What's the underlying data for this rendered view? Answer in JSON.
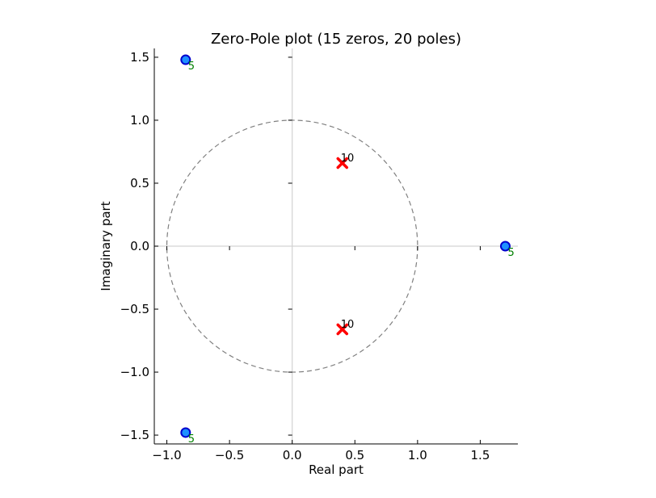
{
  "chart_data": {
    "type": "scatter",
    "title": "Zero-Pole plot (15 zeros, 20 poles)",
    "xlabel": "Real part",
    "ylabel": "Imaginary part",
    "xlim": [
      -1.1,
      1.8
    ],
    "ylim": [
      -1.57,
      1.57
    ],
    "x_ticks": [
      -1.0,
      -0.5,
      0.0,
      0.5,
      1.0,
      1.5
    ],
    "x_tick_labels": [
      "−1.0",
      "−0.5",
      "0.0",
      "0.5",
      "1.0",
      "1.5"
    ],
    "y_ticks": [
      1.5,
      1.0,
      0.5,
      0.0,
      -0.5,
      -1.0,
      -1.5
    ],
    "y_tick_labels": [
      "1.5",
      "1.0",
      "0.5",
      "0.0",
      "−0.5",
      "−1.0",
      "−1.5"
    ],
    "unit_circle": {
      "center": [
        0,
        0
      ],
      "radius": 1
    },
    "zeros": [
      {
        "re": -0.85,
        "im": 1.48,
        "multiplicity": "5"
      },
      {
        "re": 1.7,
        "im": 0.0,
        "multiplicity": "5"
      },
      {
        "re": -0.85,
        "im": -1.48,
        "multiplicity": "5"
      }
    ],
    "poles": [
      {
        "re": 0.4,
        "im": 0.66,
        "multiplicity": "10"
      },
      {
        "re": 0.4,
        "im": -0.66,
        "multiplicity": "10"
      }
    ],
    "colors": {
      "zero_face": "#1e90ff",
      "zero_edge": "#0000cd",
      "zero_label": "#008000",
      "pole": "#ff0000",
      "pole_label": "#000000",
      "unit_circle": "#808080",
      "zero_axes": "#d3d3d3"
    }
  }
}
